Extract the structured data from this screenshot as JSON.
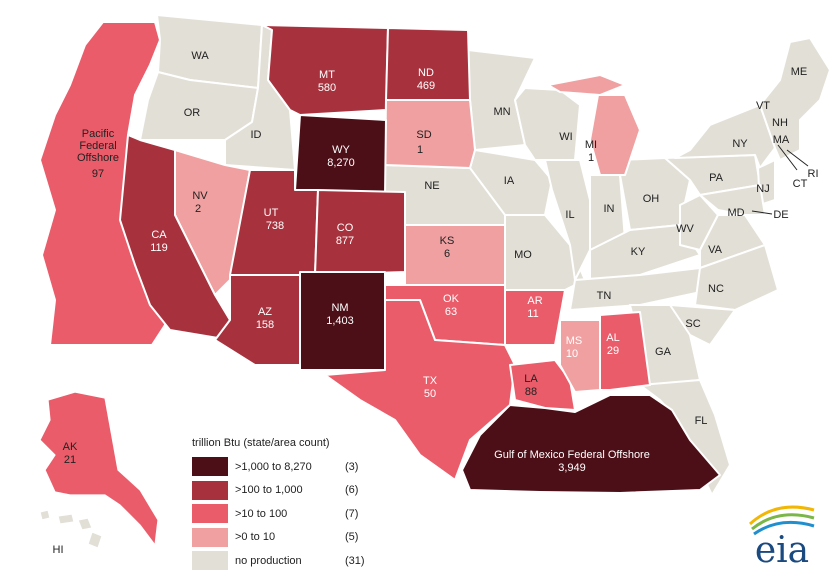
{
  "legend": {
    "title": "trillion Btu (state/area count)",
    "classes": [
      {
        "label": ">1,000 to 8,270",
        "count": "(3)",
        "color": "#4d0f17"
      },
      {
        "label": ">100 to 1,000",
        "count": "(6)",
        "color": "#a7323d"
      },
      {
        "label": ">10 to 100",
        "count": "(7)",
        "color": "#ea5c6a"
      },
      {
        "label": ">0 to 10",
        "count": "(5)",
        "color": "#f0a0a0"
      },
      {
        "label": "no production",
        "count": "(31)",
        "color": "#e2dfd6"
      }
    ]
  },
  "producing_areas": [
    {
      "abbr": "WY",
      "value": "8,270",
      "class": 0
    },
    {
      "abbr": "Gulf of Mexico Federal Offshore",
      "value": "3,949",
      "class": 0
    },
    {
      "abbr": "NM",
      "value": "1,403",
      "class": 0
    },
    {
      "abbr": "CO",
      "value": "877",
      "class": 1
    },
    {
      "abbr": "UT",
      "value": "738",
      "class": 1
    },
    {
      "abbr": "MT",
      "value": "580",
      "class": 1
    },
    {
      "abbr": "ND",
      "value": "469",
      "class": 1
    },
    {
      "abbr": "AZ",
      "value": "158",
      "class": 1
    },
    {
      "abbr": "CA",
      "value": "119",
      "class": 1
    },
    {
      "abbr": "Pacific Federal Offshore",
      "value": "97",
      "class": 2
    },
    {
      "abbr": "LA",
      "value": "88",
      "class": 2
    },
    {
      "abbr": "OK",
      "value": "63",
      "class": 2
    },
    {
      "abbr": "TX",
      "value": "50",
      "class": 2
    },
    {
      "abbr": "AL",
      "value": "29",
      "class": 2
    },
    {
      "abbr": "AK",
      "value": "21",
      "class": 2
    },
    {
      "abbr": "AR",
      "value": "11",
      "class": 2
    },
    {
      "abbr": "MS",
      "value": "10",
      "class": 3
    },
    {
      "abbr": "KS",
      "value": "6",
      "class": 3
    },
    {
      "abbr": "NV",
      "value": "2",
      "class": 3
    },
    {
      "abbr": "SD",
      "value": "1",
      "class": 3
    },
    {
      "abbr": "MI",
      "value": "1",
      "class": 3
    }
  ],
  "non_producing_states": [
    "WA",
    "OR",
    "ID",
    "MN",
    "WI",
    "IA",
    "NE",
    "MO",
    "IL",
    "IN",
    "OH",
    "KY",
    "TN",
    "WV",
    "VA",
    "NC",
    "SC",
    "GA",
    "FL",
    "PA",
    "NY",
    "VT",
    "NH",
    "ME",
    "MA",
    "CT",
    "RI",
    "NJ",
    "MD",
    "DE",
    "HI"
  ],
  "logo": {
    "text": "eia"
  }
}
